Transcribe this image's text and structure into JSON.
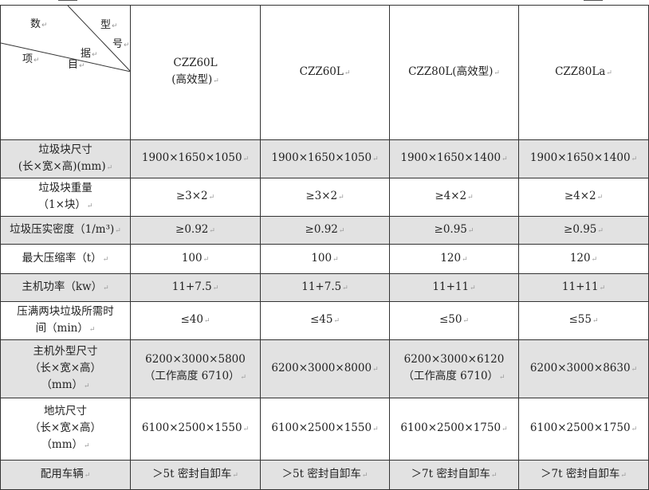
{
  "corner": {
    "labels": [
      "数",
      "型",
      "号",
      "据",
      "项",
      "目"
    ]
  },
  "models": [
    "CZZ60L\n(高效型)",
    "CZZ60L",
    "CZZ80L(高效型)",
    "CZZ80La"
  ],
  "rows": [
    {
      "label": "垃圾块尺寸\n(长×宽×高)(mm)",
      "values": [
        "1900×1650×1050",
        "1900×1650×1050",
        "1900×1650×1400",
        "1900×1650×1400"
      ],
      "shaded": true
    },
    {
      "label": "垃圾块重量\n（1×块）",
      "values": [
        "≥3×2",
        "≥3×2",
        "≥4×2",
        "≥4×2"
      ],
      "shaded": false
    },
    {
      "label": "垃圾压实密度（1/m³)",
      "values": [
        "≥0.92",
        "≥0.92",
        "≥0.95",
        "≥0.95"
      ],
      "shaded": true
    },
    {
      "label": "最大压缩率（t）",
      "values": [
        "100",
        "100",
        "120",
        "120"
      ],
      "shaded": false
    },
    {
      "label": "主机功率（kw）",
      "values": [
        "11+7.5",
        "11+7.5",
        "11+11",
        "11+11"
      ],
      "shaded": true
    },
    {
      "label": "压满两块垃圾所需时\n间（min）",
      "values": [
        "≤40",
        "≤45",
        "≤50",
        "≤55"
      ],
      "shaded": false
    },
    {
      "label": "主机外型尺寸\n（长×宽×高）\n（mm）",
      "values": [
        "6200×3000×5800\n（工作高度 6710）",
        "6200×3000×8000",
        "6200×3000×6120\n（工作高度 6710）",
        "6200×3000×8630"
      ],
      "shaded": true
    },
    {
      "label": "地坑尺寸\n（长×宽×高）\n（mm）",
      "values": [
        "6100×2500×1550",
        "6100×2500×1550",
        "6100×2500×1750",
        "6100×2500×1750"
      ],
      "shaded": false
    },
    {
      "label": "配用车辆",
      "values": [
        "＞5t 密封自卸车",
        "＞5t 密封自卸车",
        "＞7t 密封自卸车",
        "＞7t 密封自卸车"
      ],
      "shaded": true
    }
  ]
}
